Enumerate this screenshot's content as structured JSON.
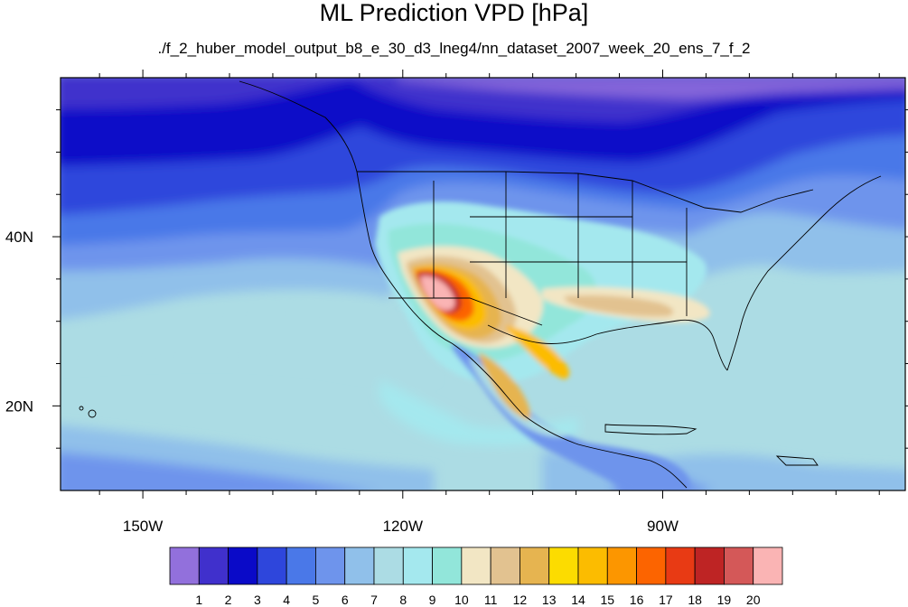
{
  "title": "ML Prediction VPD [hPa]",
  "subtitle": "./f_2_huber_model_output_b8_e_30_d3_lneg4/nn_dataset_2007_week_20_ens_7_f_2",
  "axes": {
    "x_ticks": [
      {
        "lon": -150,
        "label": "150W"
      },
      {
        "lon": -120,
        "label": "120W"
      },
      {
        "lon": -90,
        "label": "90W"
      }
    ],
    "y_ticks": [
      {
        "lat": 40,
        "label": "40N"
      },
      {
        "lat": 20,
        "label": "20N"
      }
    ],
    "lon_range": [
      -159.5,
      -62
    ],
    "lat_range": [
      10,
      58.8
    ]
  },
  "colorbar": {
    "colors": [
      "#9270dc",
      "#4030cc",
      "#0a0ac8",
      "#2e46dc",
      "#4a78e8",
      "#6e94ec",
      "#90c0ea",
      "#acdce4",
      "#a4e8ee",
      "#92e6da",
      "#f2e6c4",
      "#e2c290",
      "#e6b450",
      "#fcdc00",
      "#fcbc00",
      "#fc9600",
      "#fc6400",
      "#e83a14",
      "#be2424",
      "#d45858",
      "#fab4b4"
    ],
    "labels": [
      "1",
      "2",
      "3",
      "4",
      "5",
      "6",
      "7",
      "8",
      "9",
      "10",
      "11",
      "12",
      "13",
      "14",
      "15",
      "16",
      "17",
      "18",
      "19",
      "20"
    ]
  }
}
